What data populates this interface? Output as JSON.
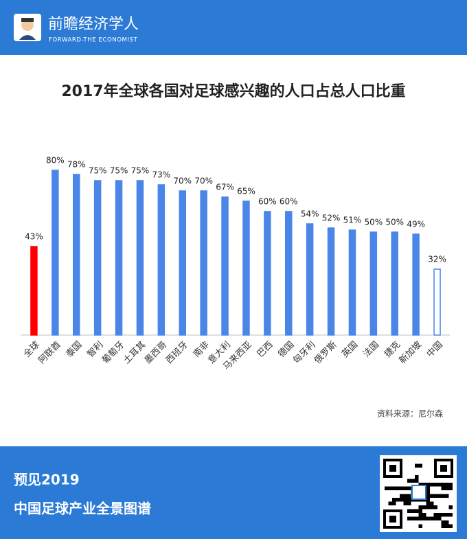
{
  "header": {
    "brand": "前瞻经济学人",
    "brand_en": "FORWARD-THE ECONOMIST"
  },
  "chart_data": {
    "type": "bar",
    "title": "2017年全球各国对足球感兴趣的人口占总人口比重",
    "categories": [
      "全球",
      "阿联酋",
      "泰国",
      "智利",
      "葡萄牙",
      "土耳其",
      "墨西哥",
      "西班牙",
      "南非",
      "意大利",
      "马来西亚",
      "巴西",
      "德国",
      "匈牙利",
      "俄罗斯",
      "英国",
      "法国",
      "捷克",
      "新加坡",
      "中国"
    ],
    "values": [
      43,
      80,
      78,
      75,
      75,
      75,
      73,
      70,
      70,
      67,
      65,
      60,
      60,
      54,
      52,
      51,
      50,
      50,
      49,
      32
    ],
    "value_labels": [
      "43%",
      "80%",
      "78%",
      "75%",
      "75%",
      "75%",
      "73%",
      "70%",
      "70%",
      "67%",
      "65%",
      "60%",
      "60%",
      "54%",
      "52%",
      "51%",
      "50%",
      "50%",
      "49%",
      "32%"
    ],
    "colors": [
      "#ff0000",
      "#4a86e8",
      "#4a86e8",
      "#4a86e8",
      "#4a86e8",
      "#4a86e8",
      "#4a86e8",
      "#4a86e8",
      "#4a86e8",
      "#4a86e8",
      "#4a86e8",
      "#4a86e8",
      "#4a86e8",
      "#4a86e8",
      "#4a86e8",
      "#4a86e8",
      "#4a86e8",
      "#4a86e8",
      "#4a86e8",
      "#ffffff"
    ],
    "edgecolors": [
      "#ff0000",
      "#4a86e8",
      "#4a86e8",
      "#4a86e8",
      "#4a86e8",
      "#4a86e8",
      "#4a86e8",
      "#4a86e8",
      "#4a86e8",
      "#4a86e8",
      "#4a86e8",
      "#4a86e8",
      "#4a86e8",
      "#4a86e8",
      "#4a86e8",
      "#4a86e8",
      "#4a86e8",
      "#4a86e8",
      "#4a86e8",
      "#4a86e8"
    ],
    "ylim": [
      0,
      80
    ],
    "grid": false,
    "source": "资料来源：尼尔森"
  },
  "footer": {
    "line1": "预见2019",
    "line2": "中国足球产业全景图谱"
  }
}
